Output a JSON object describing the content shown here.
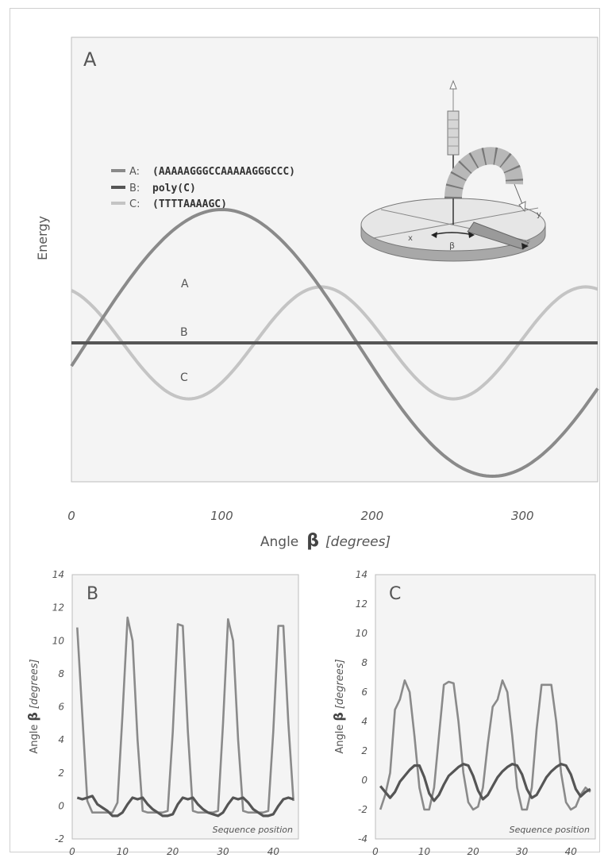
{
  "chart_data": [
    {
      "type": "line",
      "panel_label": "A",
      "xlabel_prefix": "Angle",
      "xlabel_symbol": "β",
      "xlabel_unit": "[degrees]",
      "ylabel": "Energy",
      "xlim": [
        0,
        350
      ],
      "xticks": [
        0,
        100,
        200,
        300
      ],
      "grid": false,
      "legend_position": "top-left",
      "legend": [
        {
          "key": "A:",
          "seq": "(AAAAAGGGCCAAAAAGGGCCC)"
        },
        {
          "key": "B:",
          "seq": "poly(C)"
        },
        {
          "key": "C:",
          "seq": "(TTTTAAAAGC)"
        }
      ],
      "series": [
        {
          "label": "A",
          "color": "#8a8a8a",
          "function": "sine",
          "amplitude": 1.0,
          "peak_x": 100,
          "period": 360
        },
        {
          "label": "B",
          "color": "#555555",
          "function": "constant",
          "value": 0
        },
        {
          "label": "C",
          "color": "#c4c4c4",
          "function": "sine",
          "amplitude": 0.42,
          "peak_x": 166,
          "period": 176
        }
      ],
      "inset_labels": {
        "x": "x",
        "y": "y",
        "beta": "β"
      }
    },
    {
      "type": "line",
      "panel_label": "B",
      "ylabel_prefix": "Angle",
      "ylabel_symbol": "β",
      "ylabel_unit": "[degrees]",
      "annotation": "Sequence position",
      "xlim": [
        0,
        45
      ],
      "ylim": [
        -2,
        14
      ],
      "xticks": [
        0,
        10,
        20,
        30,
        40
      ],
      "yticks": [
        -2,
        0,
        2,
        4,
        6,
        8,
        10,
        12,
        14
      ],
      "series": [
        {
          "color": "#8a8a8a",
          "x": [
            1,
            2,
            3,
            4,
            5,
            6,
            7,
            8,
            9,
            10,
            11,
            12,
            13,
            14,
            15,
            16,
            17,
            18,
            19,
            20,
            21,
            22,
            23,
            24,
            25,
            26,
            27,
            28,
            29,
            30,
            31,
            32,
            33,
            34,
            35,
            36,
            37,
            38,
            39,
            40,
            41,
            42,
            43,
            44
          ],
          "y": [
            10.8,
            5.5,
            0.3,
            -0.4,
            -0.4,
            -0.4,
            -0.4,
            -0.4,
            0.2,
            5.5,
            11.4,
            10.0,
            4.0,
            -0.3,
            -0.4,
            -0.4,
            -0.4,
            -0.4,
            -0.3,
            4.5,
            11.0,
            10.9,
            4.5,
            -0.3,
            -0.4,
            -0.4,
            -0.4,
            -0.4,
            -0.3,
            5.0,
            11.3,
            10.0,
            4.0,
            -0.3,
            -0.4,
            -0.4,
            -0.4,
            -0.4,
            -0.3,
            4.5,
            10.9,
            10.9,
            5.0,
            0.3
          ]
        },
        {
          "color": "#555555",
          "x": [
            1,
            2,
            3,
            4,
            5,
            6,
            7,
            8,
            9,
            10,
            11,
            12,
            13,
            14,
            15,
            16,
            17,
            18,
            19,
            20,
            21,
            22,
            23,
            24,
            25,
            26,
            27,
            28,
            29,
            30,
            31,
            32,
            33,
            34,
            35,
            36,
            37,
            38,
            39,
            40,
            41,
            42,
            43,
            44
          ],
          "y": [
            0.5,
            0.4,
            0.5,
            0.6,
            0.1,
            -0.1,
            -0.3,
            -0.6,
            -0.6,
            -0.4,
            0.1,
            0.5,
            0.4,
            0.5,
            0.1,
            -0.2,
            -0.4,
            -0.6,
            -0.6,
            -0.5,
            0.1,
            0.5,
            0.4,
            0.5,
            0.1,
            -0.2,
            -0.4,
            -0.5,
            -0.6,
            -0.4,
            0.1,
            0.5,
            0.4,
            0.5,
            0.2,
            -0.2,
            -0.4,
            -0.6,
            -0.6,
            -0.5,
            0.0,
            0.4,
            0.5,
            0.4
          ]
        }
      ]
    },
    {
      "type": "line",
      "panel_label": "C",
      "ylabel_prefix": "Angle",
      "ylabel_symbol": "β",
      "ylabel_unit": "[degrees]",
      "annotation": "Sequence position",
      "xlim": [
        0,
        45
      ],
      "ylim": [
        -4,
        14
      ],
      "xticks": [
        0,
        10,
        20,
        30,
        40
      ],
      "yticks": [
        -4,
        -2,
        0,
        2,
        4,
        6,
        8,
        10,
        12,
        14
      ],
      "series": [
        {
          "color": "#8a8a8a",
          "x": [
            1,
            2,
            3,
            4,
            5,
            6,
            7,
            8,
            9,
            10,
            11,
            12,
            13,
            14,
            15,
            16,
            17,
            18,
            19,
            20,
            21,
            22,
            23,
            24,
            25,
            26,
            27,
            28,
            29,
            30,
            31,
            32,
            33,
            34,
            35,
            36,
            37,
            38,
            39,
            40,
            41,
            42,
            43,
            44
          ],
          "y": [
            -2.0,
            -1.0,
            0.5,
            4.8,
            5.5,
            6.8,
            6.0,
            3.0,
            -0.5,
            -2.0,
            -2.0,
            -0.5,
            3.0,
            6.5,
            6.7,
            6.6,
            4.0,
            0.5,
            -1.5,
            -2.0,
            -1.8,
            -0.5,
            2.5,
            5.0,
            5.5,
            6.8,
            6.0,
            3.0,
            -0.5,
            -2.0,
            -2.0,
            -0.5,
            3.5,
            6.5,
            6.5,
            6.5,
            4.0,
            0.5,
            -1.5,
            -2.0,
            -1.8,
            -1.0,
            -0.5,
            -0.8
          ]
        },
        {
          "color": "#555555",
          "x": [
            1,
            2,
            3,
            4,
            5,
            6,
            7,
            8,
            9,
            10,
            11,
            12,
            13,
            14,
            15,
            16,
            17,
            18,
            19,
            20,
            21,
            22,
            23,
            24,
            25,
            26,
            27,
            28,
            29,
            30,
            31,
            32,
            33,
            34,
            35,
            36,
            37,
            38,
            39,
            40,
            41,
            42,
            43,
            44
          ],
          "y": [
            -0.4,
            -0.8,
            -1.2,
            -0.8,
            -0.1,
            0.3,
            0.7,
            1.0,
            1.0,
            0.2,
            -0.9,
            -1.4,
            -1.0,
            -0.3,
            0.3,
            0.6,
            0.9,
            1.1,
            1.0,
            0.3,
            -0.7,
            -1.3,
            -1.0,
            -0.4,
            0.2,
            0.6,
            0.9,
            1.1,
            1.0,
            0.4,
            -0.6,
            -1.2,
            -1.0,
            -0.4,
            0.2,
            0.6,
            0.9,
            1.1,
            1.0,
            0.4,
            -0.6,
            -1.1,
            -0.8,
            -0.6
          ]
        }
      ]
    }
  ]
}
